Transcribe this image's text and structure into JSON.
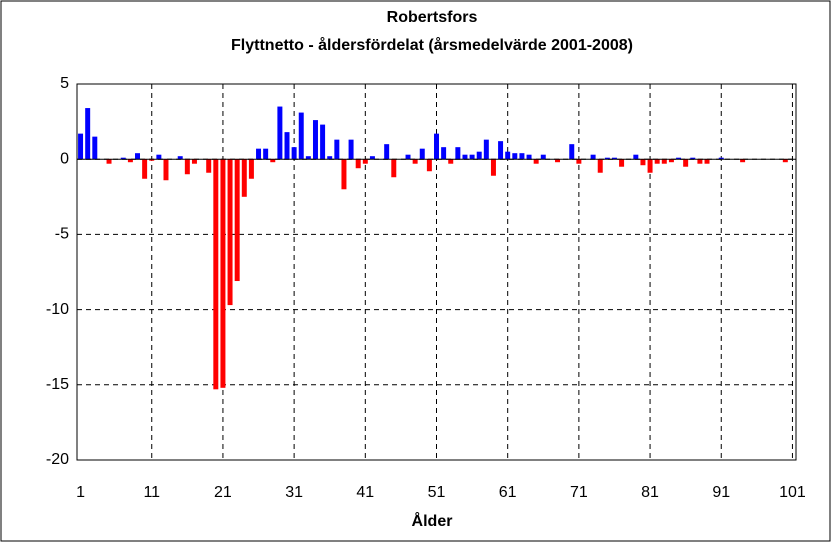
{
  "chart_data": {
    "type": "bar",
    "title": "Robertsfors",
    "subtitle": "Flyttnetto - åldersfördelat (årsmedelvärde 2001-2008)",
    "x_label": "Ålder",
    "categories": [
      "1",
      null,
      null,
      null,
      null,
      null,
      null,
      null,
      null,
      null,
      "11",
      null,
      null,
      null,
      null,
      null,
      null,
      null,
      null,
      null,
      "21",
      null,
      null,
      null,
      null,
      null,
      null,
      null,
      null,
      null,
      "31",
      null,
      null,
      null,
      null,
      null,
      null,
      null,
      null,
      null,
      "41",
      null,
      null,
      null,
      null,
      null,
      null,
      null,
      null,
      null,
      "51",
      null,
      null,
      null,
      null,
      null,
      null,
      null,
      null,
      null,
      "61",
      null,
      null,
      null,
      null,
      null,
      null,
      null,
      null,
      null,
      "71",
      null,
      null,
      null,
      null,
      null,
      null,
      null,
      null,
      null,
      "81",
      null,
      null,
      null,
      null,
      null,
      null,
      null,
      null,
      null,
      "91",
      null,
      null,
      null,
      null,
      null,
      null,
      null,
      null,
      null,
      "101"
    ],
    "values": [
      1.7,
      3.4,
      1.5,
      0,
      -0.3,
      0,
      0.1,
      -0.2,
      0.4,
      -1.3,
      -0.1,
      0.3,
      -1.4,
      0,
      0.2,
      -1.0,
      -0.3,
      0,
      -0.9,
      -15.3,
      -15.2,
      -9.7,
      -8.1,
      -2.5,
      -1.3,
      0.7,
      0.7,
      -0.2,
      3.5,
      1.8,
      0.8,
      3.1,
      0.2,
      2.6,
      2.3,
      0.2,
      1.3,
      -2.0,
      1.3,
      -0.6,
      -0.3,
      0.2,
      0,
      1.0,
      -1.2,
      0,
      0.3,
      -0.3,
      0.7,
      -0.8,
      1.7,
      0.8,
      -0.3,
      0.8,
      0.3,
      0.3,
      0.5,
      1.3,
      -1.1,
      1.2,
      0.5,
      0.4,
      0.4,
      0.3,
      -0.3,
      0.3,
      0,
      -0.2,
      0,
      1.0,
      -0.3,
      0,
      0.3,
      -0.9,
      0.1,
      0.1,
      -0.5,
      0,
      0.3,
      -0.4,
      -0.9,
      -0.3,
      -0.3,
      -0.2,
      0.1,
      -0.5,
      0.1,
      -0.3,
      -0.3,
      0,
      0.1,
      0,
      0,
      -0.2,
      0,
      0,
      0,
      0,
      0,
      -0.2,
      0
    ],
    "positive_color": "#0000ff",
    "negative_color": "#ff0000",
    "ylim": [
      -20,
      5
    ],
    "yticks": [
      -20,
      -15,
      -10,
      -5,
      0,
      5
    ],
    "grid": true
  }
}
